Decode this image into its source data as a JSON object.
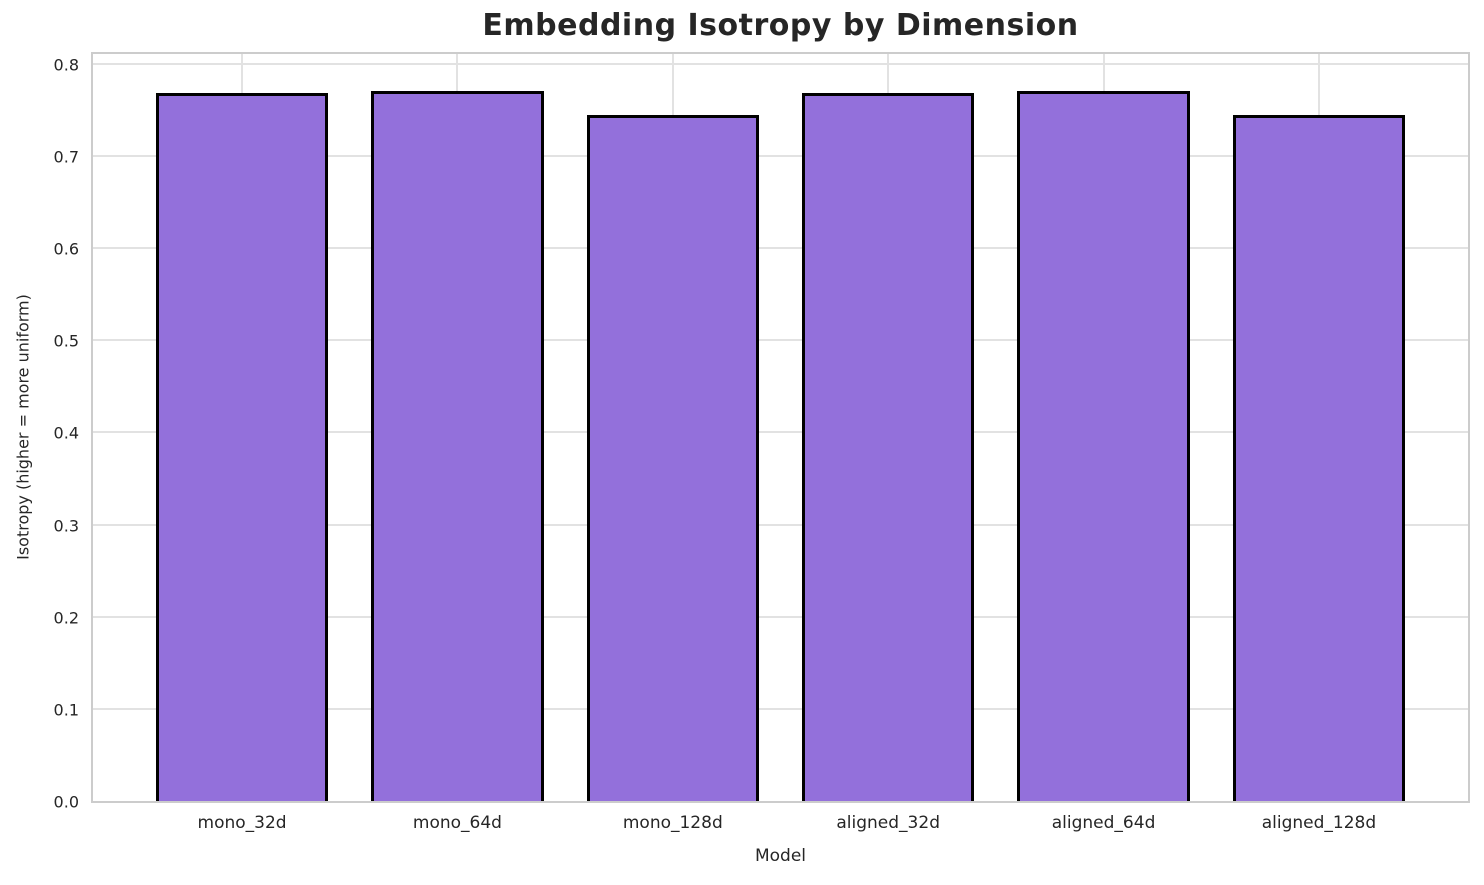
{
  "chart_data": {
    "type": "bar",
    "title": "Embedding Isotropy by Dimension",
    "xlabel": "Model",
    "ylabel": "Isotropy (higher = more uniform)",
    "categories": [
      "mono_32d",
      "mono_64d",
      "mono_128d",
      "aligned_32d",
      "aligned_64d",
      "aligned_128d"
    ],
    "values": [
      0.768,
      0.771,
      0.745,
      0.768,
      0.771,
      0.745
    ],
    "ylim": [
      0.0,
      0.8
    ],
    "yticks": [
      0.0,
      0.1,
      0.2,
      0.3,
      0.4,
      0.5,
      0.6,
      0.7,
      0.8
    ],
    "grid": "on",
    "legend": "none",
    "colors": {
      "bar_fill": "#9370db",
      "bar_edge": "#000000",
      "grid": "#e2e2e2",
      "spine": "#cccccc",
      "text": "#262626",
      "background": "#ffffff"
    }
  }
}
